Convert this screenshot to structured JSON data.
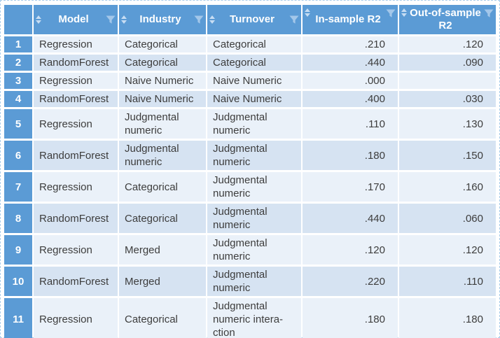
{
  "colors": {
    "header_blue": "#5b9bd5",
    "row_light": "#eaf1f9",
    "row_dark": "#d6e3f2",
    "text_dark": "#3d3d3d",
    "sort_icon": "#c7ddf3",
    "funnel_icon": "#a3c7ea",
    "frame_border": "#a9cdeb"
  },
  "table": {
    "columns": [
      {
        "id": "model",
        "label": "Model",
        "numeric": false,
        "icons": [
          "sort-icon",
          "filter-icon"
        ]
      },
      {
        "id": "industry",
        "label": "Industry",
        "numeric": false,
        "icons": [
          "sort-icon",
          "filter-icon"
        ]
      },
      {
        "id": "turnover",
        "label": "Turnover",
        "numeric": false,
        "icons": [
          "sort-icon",
          "filter-icon"
        ]
      },
      {
        "id": "in_sample_r2",
        "label": "In-sample R2",
        "numeric": true,
        "icons": [
          "sort-icon",
          "filter-icon"
        ]
      },
      {
        "id": "out_sample_r2",
        "label": "Out-of-sample R2",
        "numeric": true,
        "icons": [
          "sort-icon",
          "filter-icon"
        ]
      }
    ],
    "rows": [
      {
        "n": "1",
        "model": "Regression",
        "industry": "Categorical",
        "turnover": "Categorical",
        "in_sample_r2": ".210",
        "out_sample_r2": ".120"
      },
      {
        "n": "2",
        "model": "RandomForest",
        "industry": "Categorical",
        "turnover": "Categorical",
        "in_sample_r2": ".440",
        "out_sample_r2": ".090"
      },
      {
        "n": "3",
        "model": "Regression",
        "industry": "Naive Numeric",
        "turnover": "Naive Numeric",
        "in_sample_r2": ".000",
        "out_sample_r2": ""
      },
      {
        "n": "4",
        "model": "RandomForest",
        "industry": "Naive Numeric",
        "turnover": "Naive Numeric",
        "in_sample_r2": ".400",
        "out_sample_r2": ".030"
      },
      {
        "n": "5",
        "model": "Regression",
        "industry": "Judgmental numeric",
        "turnover": "Judgmental numeric",
        "in_sample_r2": ".110",
        "out_sample_r2": ".130"
      },
      {
        "n": "6",
        "model": "RandomForest",
        "industry": "Judgmental numeric",
        "turnover": "Judgmental numeric",
        "in_sample_r2": ".180",
        "out_sample_r2": ".150"
      },
      {
        "n": "7",
        "model": "Regression",
        "industry": "Categorical",
        "turnover": "Judgmental numeric",
        "in_sample_r2": ".170",
        "out_sample_r2": ".160"
      },
      {
        "n": "8",
        "model": "RandomForest",
        "industry": "Categorical",
        "turnover": "Judgmental numeric",
        "in_sample_r2": ".440",
        "out_sample_r2": ".060"
      },
      {
        "n": "9",
        "model": "Regression",
        "industry": "Merged",
        "turnover": "Judgmental numeric",
        "in_sample_r2": ".120",
        "out_sample_r2": ".120"
      },
      {
        "n": "10",
        "model": "RandomForest",
        "industry": "Merged",
        "turnover": "Judgmental numeric",
        "in_sample_r2": ".220",
        "out_sample_r2": ".110"
      },
      {
        "n": "11",
        "model": "Regression",
        "industry": "Categorical",
        "turnover": "Judgmental numeric intera-ction",
        "in_sample_r2": ".180",
        "out_sample_r2": ".180"
      }
    ]
  }
}
